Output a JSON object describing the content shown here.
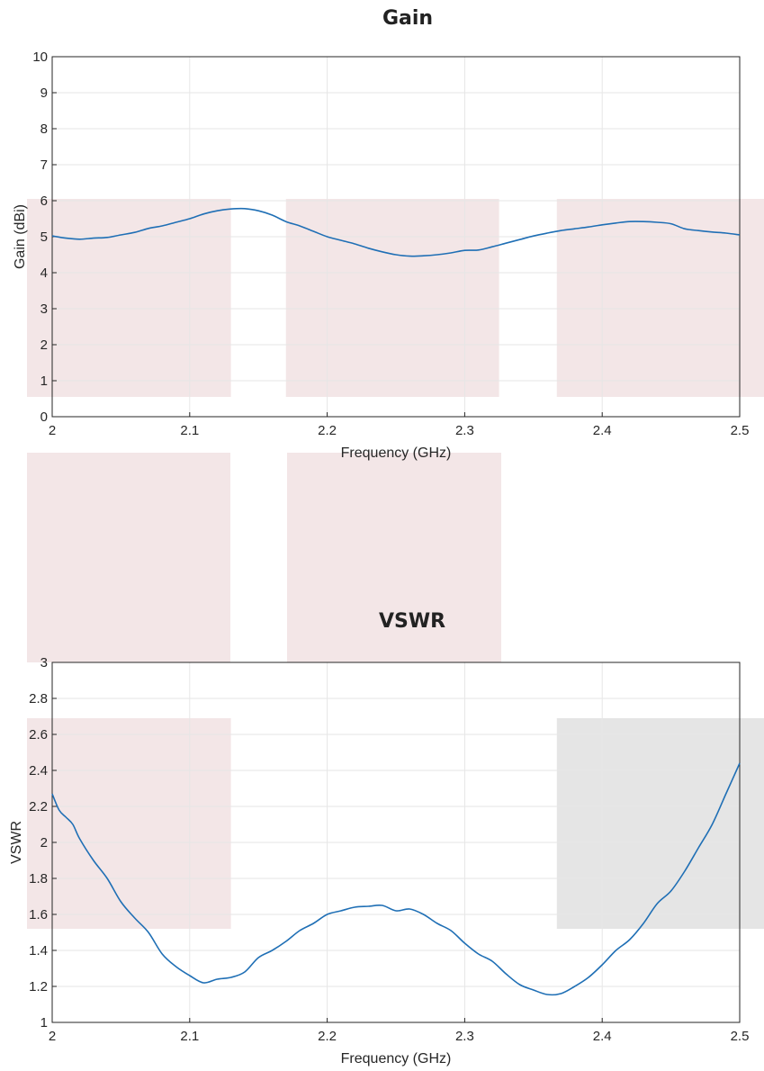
{
  "chart_data": [
    {
      "type": "line",
      "title": "Gain",
      "xlabel": "Frequency (GHz)",
      "ylabel": "Gain (dBi)",
      "xlim": [
        2,
        2.5
      ],
      "ylim": [
        0,
        10
      ],
      "xticks": [
        2,
        2.1,
        2.2,
        2.3,
        2.4,
        2.5
      ],
      "xtick_labels": [
        "2",
        "2.1",
        "2.2",
        "2.3",
        "2.4",
        "2.5"
      ],
      "yticks": [
        0,
        1,
        2,
        3,
        4,
        5,
        6,
        7,
        8,
        9,
        10
      ],
      "ytick_labels": [
        "0",
        "1",
        "2",
        "3",
        "4",
        "5",
        "6",
        "7",
        "8",
        "9",
        "10"
      ],
      "grid": true,
      "highlight_color": "#f3e6e7",
      "line_color": "#1f6fb5",
      "x": [
        2.0,
        2.01,
        2.02,
        2.03,
        2.04,
        2.05,
        2.06,
        2.07,
        2.08,
        2.09,
        2.1,
        2.11,
        2.12,
        2.13,
        2.14,
        2.15,
        2.16,
        2.17,
        2.18,
        2.19,
        2.2,
        2.21,
        2.22,
        2.23,
        2.24,
        2.25,
        2.26,
        2.27,
        2.28,
        2.29,
        2.3,
        2.31,
        2.32,
        2.33,
        2.34,
        2.35,
        2.36,
        2.37,
        2.38,
        2.39,
        2.4,
        2.41,
        2.42,
        2.43,
        2.44,
        2.45,
        2.46,
        2.47,
        2.48,
        2.49,
        2.5
      ],
      "values": [
        5.02,
        4.96,
        4.93,
        4.96,
        4.98,
        5.05,
        5.12,
        5.23,
        5.3,
        5.4,
        5.5,
        5.63,
        5.72,
        5.77,
        5.78,
        5.72,
        5.6,
        5.42,
        5.3,
        5.15,
        5.0,
        4.9,
        4.8,
        4.68,
        4.58,
        4.5,
        4.46,
        4.47,
        4.5,
        4.55,
        4.62,
        4.63,
        4.72,
        4.82,
        4.92,
        5.02,
        5.1,
        5.17,
        5.22,
        5.27,
        5.33,
        5.38,
        5.42,
        5.42,
        5.4,
        5.36,
        5.22,
        5.17,
        5.13,
        5.1,
        5.05
      ],
      "highlight_bands": [
        {
          "x": [
            2.0,
            2.13
          ],
          "y": [
            0.55,
            6.05
          ]
        },
        {
          "x": [
            2.17,
            2.325
          ],
          "y": [
            0.55,
            6.05
          ]
        },
        {
          "x": [
            2.367,
            2.52
          ],
          "y": [
            0.55,
            6.05
          ]
        }
      ]
    },
    {
      "type": "line",
      "title": "VSWR",
      "xlabel": "Frequency (GHz)",
      "ylabel": "VSWR",
      "xlim": [
        2,
        2.5
      ],
      "ylim": [
        1,
        3
      ],
      "xticks": [
        2,
        2.1,
        2.2,
        2.3,
        2.4,
        2.5
      ],
      "xtick_labels": [
        "2",
        "2.1",
        "2.2",
        "2.3",
        "2.4",
        "2.5"
      ],
      "yticks": [
        1,
        1.2,
        1.4,
        1.6,
        1.8,
        2,
        2.2,
        2.4,
        2.6,
        2.8,
        3
      ],
      "ytick_labels": [
        "1",
        "1.2",
        "1.4",
        "1.6",
        "1.8",
        "2",
        "2.2",
        "2.4",
        "2.6",
        "2.8",
        "3"
      ],
      "grid": true,
      "highlight_color": "#f3e6e7",
      "gray_color": "#e5e5e5",
      "line_color": "#1f6fb5",
      "x": [
        2.0,
        2.005,
        2.01,
        2.015,
        2.02,
        2.03,
        2.04,
        2.05,
        2.06,
        2.07,
        2.08,
        2.09,
        2.1,
        2.11,
        2.12,
        2.13,
        2.14,
        2.15,
        2.16,
        2.17,
        2.18,
        2.19,
        2.2,
        2.21,
        2.22,
        2.23,
        2.24,
        2.25,
        2.26,
        2.27,
        2.28,
        2.29,
        2.3,
        2.31,
        2.32,
        2.33,
        2.34,
        2.35,
        2.36,
        2.37,
        2.38,
        2.39,
        2.4,
        2.41,
        2.42,
        2.43,
        2.44,
        2.45,
        2.46,
        2.47,
        2.48,
        2.49,
        2.5
      ],
      "values": [
        2.27,
        2.18,
        2.14,
        2.1,
        2.02,
        1.9,
        1.8,
        1.67,
        1.58,
        1.5,
        1.38,
        1.31,
        1.26,
        1.22,
        1.24,
        1.25,
        1.28,
        1.36,
        1.4,
        1.45,
        1.51,
        1.55,
        1.6,
        1.62,
        1.64,
        1.645,
        1.65,
        1.62,
        1.63,
        1.6,
        1.55,
        1.51,
        1.44,
        1.38,
        1.34,
        1.27,
        1.21,
        1.18,
        1.155,
        1.16,
        1.2,
        1.25,
        1.32,
        1.4,
        1.46,
        1.55,
        1.66,
        1.73,
        1.84,
        1.97,
        2.1,
        2.27,
        2.44
      ],
      "highlight_bands": [
        {
          "x": [
            2.0,
            2.13
          ],
          "y": [
            1.52,
            2.69
          ]
        }
      ],
      "gray_bands": [
        {
          "x": [
            2.367,
            2.52
          ],
          "y": [
            1.52,
            2.69
          ]
        }
      ]
    }
  ]
}
